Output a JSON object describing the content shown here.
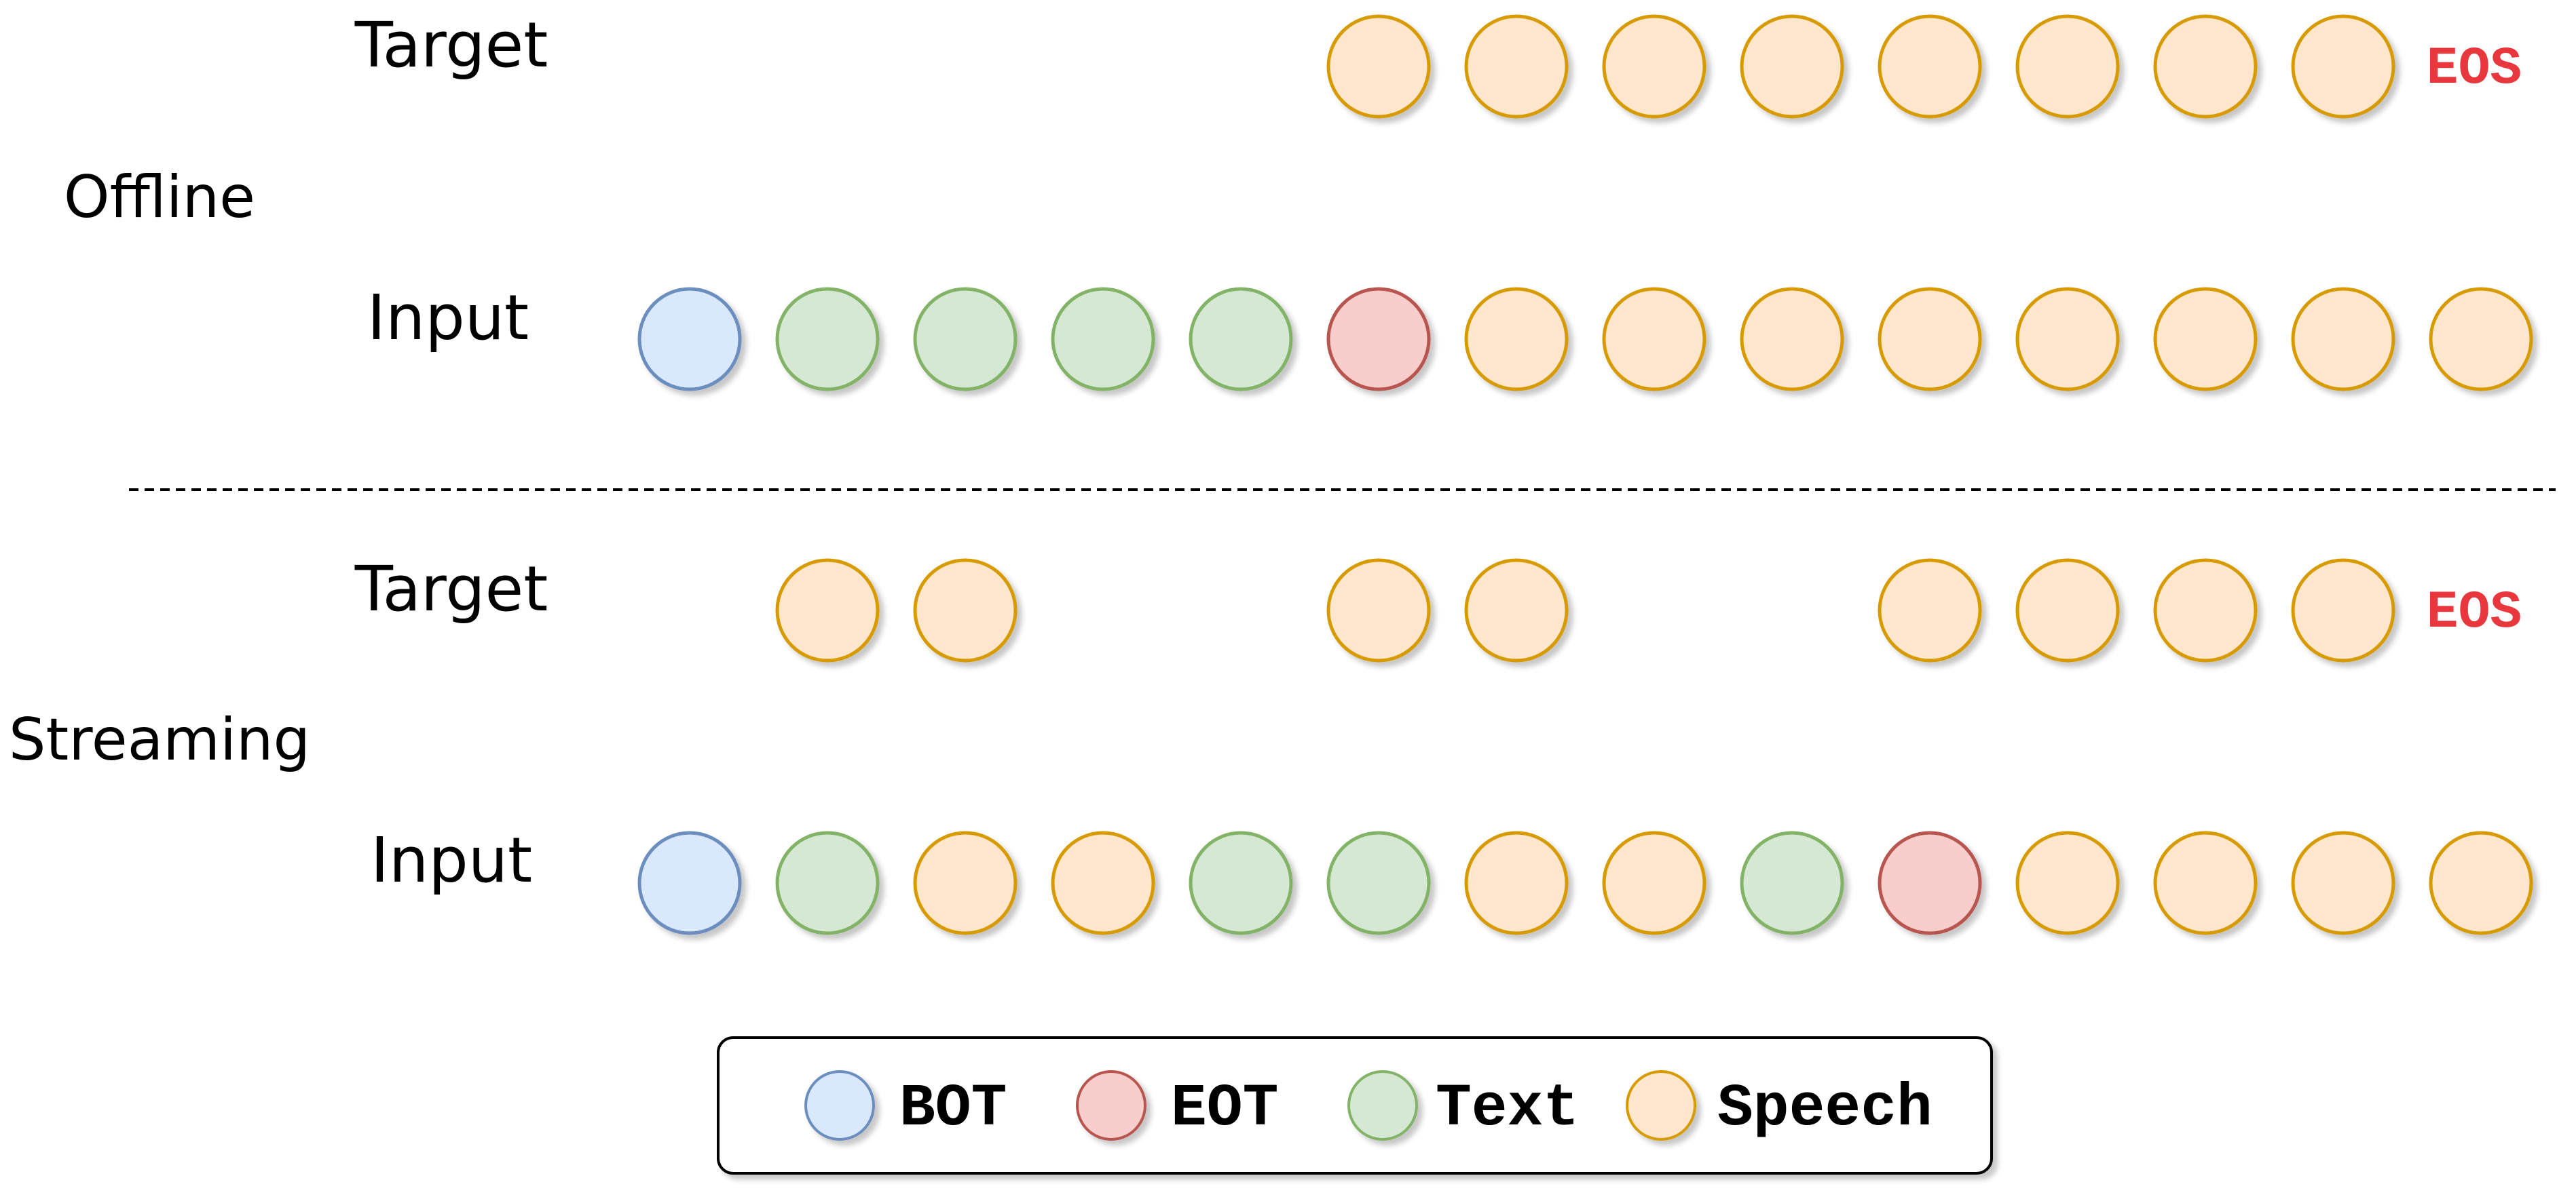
{
  "token_types": {
    "BOT": {
      "fill": "#dae8fc",
      "stroke": "#6c8ebf"
    },
    "EOT": {
      "fill": "#f8cecc",
      "stroke": "#b85450"
    },
    "Text": {
      "fill": "#d5e8d4",
      "stroke": "#82b366"
    },
    "Speech": {
      "fill": "#ffe6cc",
      "stroke": "#d79b00"
    }
  },
  "eos": {
    "label": "EOS",
    "color": "#e8383d"
  },
  "sections": [
    {
      "name": "Offline",
      "target": {
        "label": "Target",
        "tokens": [
          null,
          null,
          null,
          null,
          null,
          "Speech",
          "Speech",
          "Speech",
          "Speech",
          "Speech",
          "Speech",
          "Speech",
          "Speech"
        ],
        "eos": true
      },
      "input": {
        "label": "Input",
        "tokens": [
          "BOT",
          "Text",
          "Text",
          "Text",
          "Text",
          "EOT",
          "Speech",
          "Speech",
          "Speech",
          "Speech",
          "Speech",
          "Speech",
          "Speech",
          "Speech"
        ]
      }
    },
    {
      "name": "Streaming",
      "target": {
        "label": "Target",
        "tokens": [
          null,
          "Speech",
          "Speech",
          null,
          null,
          "Speech",
          "Speech",
          null,
          null,
          "Speech",
          "Speech",
          "Speech",
          "Speech"
        ],
        "eos": true
      },
      "input": {
        "label": "Input",
        "tokens": [
          "BOT",
          "Text",
          "Speech",
          "Speech",
          "Text",
          "Text",
          "Speech",
          "Speech",
          "Text",
          "EOT",
          "Speech",
          "Speech",
          "Speech",
          "Speech"
        ]
      }
    }
  ],
  "legend": [
    {
      "type": "BOT",
      "label": "BOT"
    },
    {
      "type": "EOT",
      "label": "EOT"
    },
    {
      "type": "Text",
      "label": "Text"
    },
    {
      "type": "Speech",
      "label": "Speech"
    }
  ]
}
